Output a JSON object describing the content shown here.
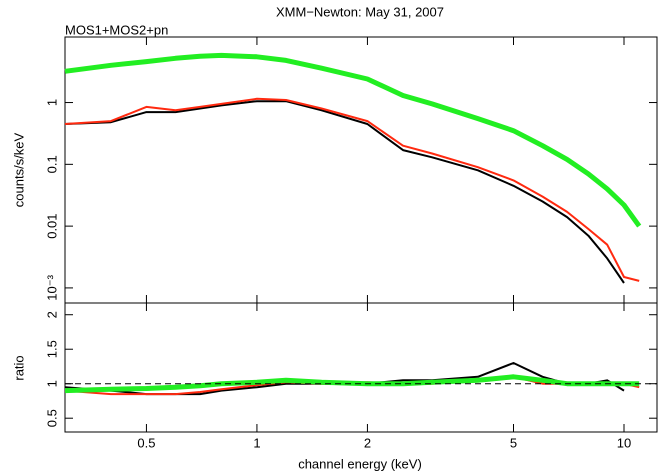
{
  "chart_data": [
    {
      "type": "line",
      "title": "XMM−Newton: May 31, 2007",
      "annotation": "MOS1+MOS2+pn",
      "y_label": "counts/s/keV",
      "x_log": true,
      "y_log": true,
      "xlim": [
        0.3,
        12.3
      ],
      "xticks": [
        0.5,
        1,
        2,
        5,
        10
      ],
      "ylim": [
        0.00057,
        11.5
      ],
      "yticks": [
        {
          "value": 0.001,
          "label": "10⁻³"
        },
        0.01,
        0.1,
        1
      ],
      "x": [
        0.3,
        0.4,
        0.5,
        0.6,
        0.7,
        0.8,
        1,
        1.2,
        1.5,
        2,
        2.5,
        3,
        4,
        5,
        6,
        7,
        8,
        9,
        10,
        11
      ],
      "series": [
        {
          "color": "#000000",
          "values": [
            0.45,
            0.48,
            0.7,
            0.7,
            0.8,
            0.9,
            1.05,
            1.05,
            0.75,
            0.45,
            0.17,
            0.13,
            0.08,
            0.045,
            0.025,
            0.014,
            0.007,
            0.003,
            0.0012,
            null
          ]
        },
        {
          "color": "#ff2a10",
          "values": [
            0.45,
            0.5,
            0.85,
            0.75,
            0.85,
            0.95,
            1.15,
            1.1,
            0.8,
            0.5,
            0.2,
            0.15,
            0.09,
            0.055,
            0.03,
            0.017,
            0.009,
            0.005,
            0.0015,
            0.0013
          ]
        },
        {
          "color": "#22ee22",
          "values": [
            3.2,
            4.0,
            4.6,
            5.2,
            5.6,
            5.8,
            5.5,
            4.8,
            3.6,
            2.4,
            1.3,
            0.95,
            0.55,
            0.35,
            0.2,
            0.12,
            0.07,
            0.04,
            0.022,
            0.01
          ]
        }
      ]
    },
    {
      "type": "line",
      "x_label": "channel energy (keV)",
      "y_label": "ratio",
      "x_log": true,
      "y_log": false,
      "ref_line": 1,
      "xlim": [
        0.3,
        12.3
      ],
      "xticks": [
        0.5,
        1,
        2,
        5,
        10
      ],
      "ylim": [
        0.3,
        2.17
      ],
      "yticks": [
        0.5,
        1,
        1.5,
        2
      ],
      "x": [
        0.3,
        0.4,
        0.5,
        0.6,
        0.7,
        0.8,
        1,
        1.2,
        1.5,
        2,
        2.5,
        3,
        4,
        5,
        6,
        7,
        8,
        9,
        10,
        11
      ],
      "series": [
        {
          "color": "#000000",
          "values": [
            0.95,
            0.9,
            0.85,
            0.85,
            0.85,
            0.9,
            0.95,
            1.0,
            1.0,
            1.0,
            1.05,
            1.05,
            1.1,
            1.3,
            1.1,
            1.0,
            1.0,
            1.05,
            0.9,
            null
          ]
        },
        {
          "color": "#ff2a10",
          "values": [
            0.9,
            0.85,
            0.85,
            0.85,
            0.88,
            0.92,
            0.98,
            1.02,
            1.0,
            1.02,
            1.0,
            1.0,
            1.05,
            1.1,
            1.0,
            1.0,
            1.0,
            1.0,
            1.0,
            0.95
          ]
        },
        {
          "color": "#22ee22",
          "values": [
            0.9,
            0.92,
            0.93,
            0.95,
            0.97,
            1.0,
            1.02,
            1.05,
            1.02,
            1.0,
            1.0,
            1.02,
            1.05,
            1.1,
            1.05,
            1.0,
            1.0,
            1.0,
            1.0,
            1.0
          ]
        }
      ]
    }
  ]
}
